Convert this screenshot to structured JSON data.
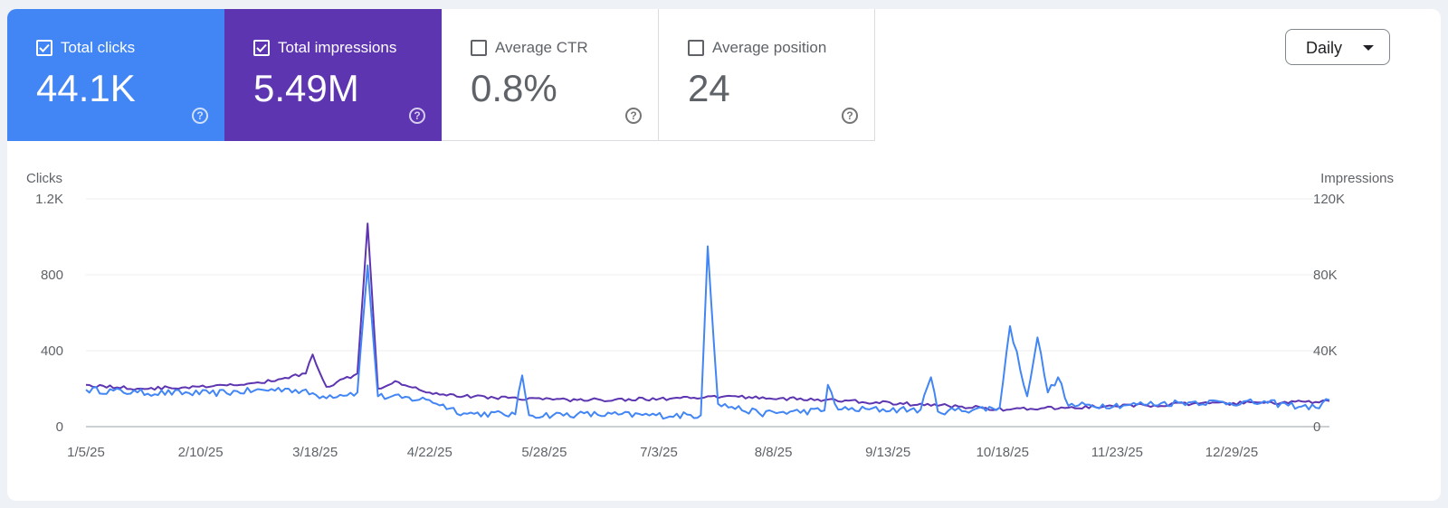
{
  "metrics": [
    {
      "label": "Total clicks",
      "value": "44.1K",
      "selected": true,
      "color": "#4285f4"
    },
    {
      "label": "Total impressions",
      "value": "5.49M",
      "selected": true,
      "color": "#5e35b1"
    },
    {
      "label": "Average CTR",
      "value": "0.8%",
      "selected": false
    },
    {
      "label": "Average position",
      "value": "24",
      "selected": false
    }
  ],
  "controls": {
    "granularity": "Daily"
  },
  "chart_data": {
    "type": "line",
    "x_start": "2025-01-05",
    "x_end": "2026-01-02",
    "xtick_labels": [
      "1/5/25",
      "2/10/25",
      "3/18/25",
      "4/22/25",
      "5/28/25",
      "7/3/25",
      "8/8/25",
      "9/13/25",
      "10/18/25",
      "11/23/25",
      "12/29/25"
    ],
    "y_left": {
      "label": "Clicks",
      "ticks": [
        "0",
        "400",
        "800",
        "1.2K"
      ],
      "range": [
        0,
        1200
      ]
    },
    "y_right": {
      "label": "Impressions",
      "ticks": [
        "0",
        "40K",
        "80K",
        "120K"
      ],
      "range": [
        0,
        120000
      ]
    },
    "grid": true,
    "series": [
      {
        "name": "Total clicks",
        "axis": "left",
        "color": "#4285f4",
        "points": [
          [
            "2025-01-05",
            195
          ],
          [
            "2025-01-20",
            180
          ],
          [
            "2025-02-10",
            175
          ],
          [
            "2025-03-05",
            200
          ],
          [
            "2025-03-15",
            160
          ],
          [
            "2025-03-25",
            180
          ],
          [
            "2025-03-28",
            850
          ],
          [
            "2025-03-31",
            160
          ],
          [
            "2025-04-15",
            140
          ],
          [
            "2025-04-25",
            70
          ],
          [
            "2025-05-10",
            65
          ],
          [
            "2025-05-12",
            270
          ],
          [
            "2025-05-14",
            60
          ],
          [
            "2025-05-28",
            65
          ],
          [
            "2025-06-20",
            60
          ],
          [
            "2025-07-03",
            60
          ],
          [
            "2025-07-05",
            950
          ],
          [
            "2025-07-08",
            120
          ],
          [
            "2025-07-20",
            70
          ],
          [
            "2025-08-08",
            85
          ],
          [
            "2025-08-09",
            220
          ],
          [
            "2025-08-12",
            90
          ],
          [
            "2025-09-05",
            90
          ],
          [
            "2025-09-08",
            260
          ],
          [
            "2025-09-10",
            80
          ],
          [
            "2025-09-28",
            100
          ],
          [
            "2025-10-01",
            530
          ],
          [
            "2025-10-06",
            160
          ],
          [
            "2025-10-09",
            470
          ],
          [
            "2025-10-12",
            180
          ],
          [
            "2025-10-15",
            260
          ],
          [
            "2025-10-18",
            110
          ],
          [
            "2025-11-05",
            115
          ],
          [
            "2025-11-23",
            130
          ],
          [
            "2025-12-15",
            125
          ],
          [
            "2025-12-29",
            100
          ],
          [
            "2026-01-02",
            140
          ]
        ]
      },
      {
        "name": "Total impressions",
        "axis": "right",
        "color": "#5e35b1",
        "points": [
          [
            "2025-01-05",
            22000
          ],
          [
            "2025-01-20",
            20000
          ],
          [
            "2025-02-10",
            21000
          ],
          [
            "2025-02-25",
            23000
          ],
          [
            "2025-03-10",
            28000
          ],
          [
            "2025-03-12",
            38000
          ],
          [
            "2025-03-16",
            21000
          ],
          [
            "2025-03-25",
            28000
          ],
          [
            "2025-03-28",
            107000
          ],
          [
            "2025-03-31",
            20000
          ],
          [
            "2025-04-05",
            24000
          ],
          [
            "2025-04-15",
            18000
          ],
          [
            "2025-04-25",
            16000
          ],
          [
            "2025-05-28",
            14000
          ],
          [
            "2025-07-03",
            15000
          ],
          [
            "2025-07-10",
            16000
          ],
          [
            "2025-08-08",
            14000
          ],
          [
            "2025-09-13",
            11000
          ],
          [
            "2025-10-01",
            9000
          ],
          [
            "2025-10-18",
            10000
          ],
          [
            "2025-11-23",
            12000
          ],
          [
            "2025-12-29",
            13000
          ],
          [
            "2026-01-02",
            13500
          ]
        ]
      }
    ]
  }
}
